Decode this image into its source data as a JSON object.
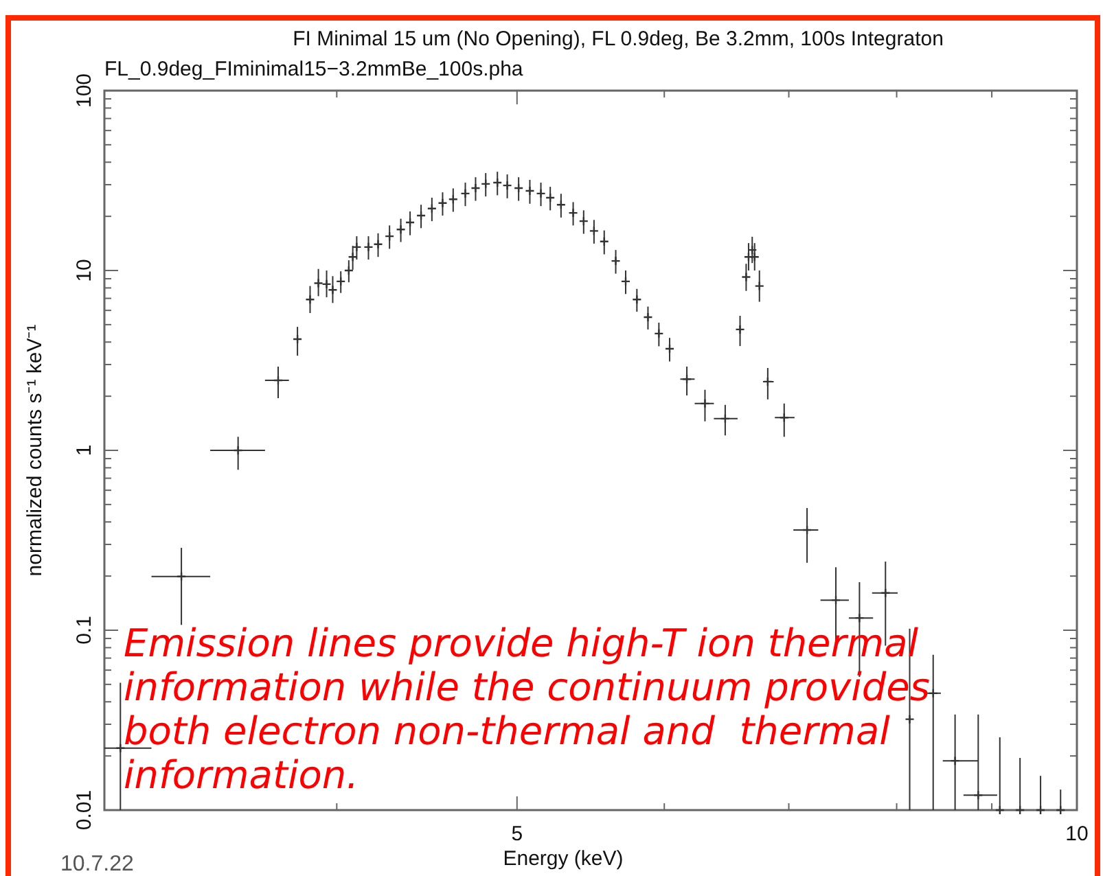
{
  "chart_data": {
    "type": "scatter",
    "title": "FI Minimal 15 um (No Opening), FL 0.9deg, Be 3.2mm, 100s Integraton",
    "subtitle": "FL_0.9deg_FIminimal15−3.2mmBe_100s.pha",
    "xlabel": "Energy (keV)",
    "ylabel": "normalized counts s⁻¹ keV⁻¹",
    "log": "xy",
    "grid": false,
    "marker": "cross",
    "xlim": [
      3,
      10
    ],
    "ylim": [
      0.01,
      100
    ],
    "xticks": [
      {
        "value": 4,
        "label": null
      },
      5,
      {
        "value": 6,
        "label": null
      },
      {
        "value": 7,
        "label": null
      },
      {
        "value": 8,
        "label": null
      },
      {
        "value": 9,
        "label": null
      },
      10
    ],
    "yticks": [
      0.01,
      {
        "value": 0.02,
        "label": null
      },
      {
        "value": 0.03,
        "label": null
      },
      {
        "value": 0.04,
        "label": null
      },
      {
        "value": 0.05,
        "label": null
      },
      {
        "value": 0.06,
        "label": null
      },
      {
        "value": 0.07,
        "label": null
      },
      {
        "value": 0.08,
        "label": null
      },
      {
        "value": 0.09,
        "label": null
      },
      0.1,
      {
        "value": 0.2,
        "label": null
      },
      {
        "value": 0.3,
        "label": null
      },
      {
        "value": 0.4,
        "label": null
      },
      {
        "value": 0.5,
        "label": null
      },
      {
        "value": 0.6,
        "label": null
      },
      {
        "value": 0.7,
        "label": null
      },
      {
        "value": 0.8,
        "label": null
      },
      {
        "value": 0.9,
        "label": null
      },
      1,
      {
        "value": 2,
        "label": null
      },
      {
        "value": 3,
        "label": null
      },
      {
        "value": 4,
        "label": null
      },
      {
        "value": 5,
        "label": null
      },
      {
        "value": 6,
        "label": null
      },
      {
        "value": 7,
        "label": null
      },
      {
        "value": 8,
        "label": null
      },
      {
        "value": 9,
        "label": null
      },
      10,
      {
        "value": 20,
        "label": null
      },
      {
        "value": 30,
        "label": null
      },
      {
        "value": 40,
        "label": null
      },
      {
        "value": 50,
        "label": null
      },
      {
        "value": 60,
        "label": null
      },
      {
        "value": 70,
        "label": null
      },
      {
        "value": 80,
        "label": null
      },
      {
        "value": 90,
        "label": null
      },
      100
    ],
    "series": [
      {
        "color": "#333333",
        "x": [
          3.06,
          3.3,
          3.54,
          3.72,
          3.81,
          3.87,
          3.91,
          3.95,
          3.98,
          4.02,
          4.06,
          4.08,
          4.1,
          4.16,
          4.21,
          4.27,
          4.33,
          4.38,
          4.44,
          4.5,
          4.56,
          4.62,
          4.69,
          4.75,
          4.81,
          4.88,
          4.94,
          5.01,
          5.08,
          5.15,
          5.21,
          5.28,
          5.36,
          5.43,
          5.5,
          5.57,
          5.65,
          5.72,
          5.8,
          5.88,
          5.96,
          6.04,
          6.17,
          6.31,
          6.47,
          6.59,
          6.64,
          6.66,
          6.69,
          6.71,
          6.75,
          6.82,
          6.96,
          7.16,
          7.42,
          7.64,
          7.89,
          8.13,
          8.37,
          8.6,
          8.85,
          9.09,
          9.32,
          9.56,
          9.8
        ],
        "values": [
          0.0221,
          0.199,
          1.0,
          2.45,
          4.15,
          6.9,
          8.5,
          8.4,
          7.8,
          8.7,
          10.0,
          11.9,
          13.5,
          13.5,
          14.0,
          15.5,
          16.9,
          18.5,
          20.2,
          22.1,
          23.7,
          24.9,
          26.8,
          28.7,
          30.3,
          30.8,
          29.7,
          28.7,
          27.7,
          26.8,
          25.4,
          23.2,
          20.9,
          18.8,
          16.6,
          14.5,
          11.3,
          8.7,
          6.9,
          5.5,
          4.46,
          3.67,
          2.49,
          1.82,
          1.5,
          4.7,
          9.2,
          11.9,
          13.0,
          11.9,
          8.2,
          2.41,
          1.52,
          0.361,
          0.147,
          0.117,
          0.161,
          0.032,
          0.0446,
          0.0188,
          0.0121,
          0.01,
          0.01,
          0.01,
          0.01
        ],
        "errors": [
          [
            0.01,
            0.051
          ],
          [
            0.107,
            0.287
          ],
          [
            0.78,
            1.19
          ],
          [
            1.95,
            2.92
          ],
          [
            3.36,
            4.86
          ],
          [
            5.8,
            8.2
          ],
          [
            7.2,
            10.2
          ],
          [
            7.1,
            10.0
          ],
          [
            6.6,
            9.3
          ],
          1.2,
          1.4,
          1.8,
          2.0,
          2.0,
          2.1,
          2.3,
          2.5,
          2.8,
          3.0,
          3.3,
          3.5,
          3.7,
          4.0,
          4.3,
          4.5,
          4.6,
          4.5,
          4.3,
          4.2,
          4.0,
          3.8,
          3.5,
          3.1,
          2.8,
          2.5,
          2.2,
          1.7,
          1.3,
          1.0,
          0.8,
          0.67,
          0.55,
          [
            2.02,
            2.92
          ],
          [
            1.45,
            2.17
          ],
          [
            1.21,
            1.79
          ],
          [
            3.8,
            5.6
          ],
          [
            7.7,
            10.9
          ],
          [
            10.0,
            14.2
          ],
          [
            11.0,
            15.4
          ],
          [
            10.0,
            14.2
          ],
          [
            6.7,
            10.0
          ],
          [
            1.92,
            2.87
          ],
          [
            1.19,
            1.82
          ],
          [
            0.237,
            0.478
          ],
          [
            0.082,
            0.224
          ],
          [
            0.055,
            0.185
          ],
          [
            0.082,
            0.241
          ],
          [
            0.01,
            0.102
          ],
          [
            0.01,
            0.073
          ],
          [
            0.01,
            0.034
          ],
          [
            0.01,
            0.034
          ],
          [
            0.01,
            0.0254
          ],
          [
            0.01,
            0.0195
          ],
          [
            0.01,
            0.0155
          ],
          [
            0.01,
            0.013
          ]
        ],
        "xerrors": [
          [
            3.0,
            3.18
          ],
          [
            3.18,
            3.42
          ],
          [
            3.42,
            3.66
          ],
          [
            3.66,
            3.77
          ],
          null,
          null,
          null,
          null,
          null,
          null,
          null,
          null,
          null,
          null,
          null,
          null,
          null,
          null,
          null,
          null,
          null,
          null,
          null,
          null,
          null,
          null,
          null,
          null,
          null,
          null,
          null,
          null,
          null,
          null,
          null,
          null,
          null,
          null,
          null,
          null,
          null,
          null,
          [
            6.12,
            6.23
          ],
          [
            6.23,
            6.38
          ],
          [
            6.38,
            6.57
          ],
          null,
          null,
          null,
          null,
          null,
          null,
          [
            6.78,
            6.87
          ],
          [
            6.88,
            7.05
          ],
          [
            7.04,
            7.26
          ],
          [
            7.28,
            7.54
          ],
          [
            7.54,
            7.77
          ],
          [
            7.76,
            8.01
          ],
          null,
          [
            8.3,
            8.45
          ],
          [
            8.47,
            8.85
          ],
          [
            8.69,
            9.06
          ],
          null,
          null,
          null,
          null
        ]
      }
    ],
    "annotations": [
      "Emission lines provide high-T ion thermal\ninformation while the continuum provides\nboth electron non-thermal and  thermal\ninformation.",
      "10.7.22"
    ]
  }
}
